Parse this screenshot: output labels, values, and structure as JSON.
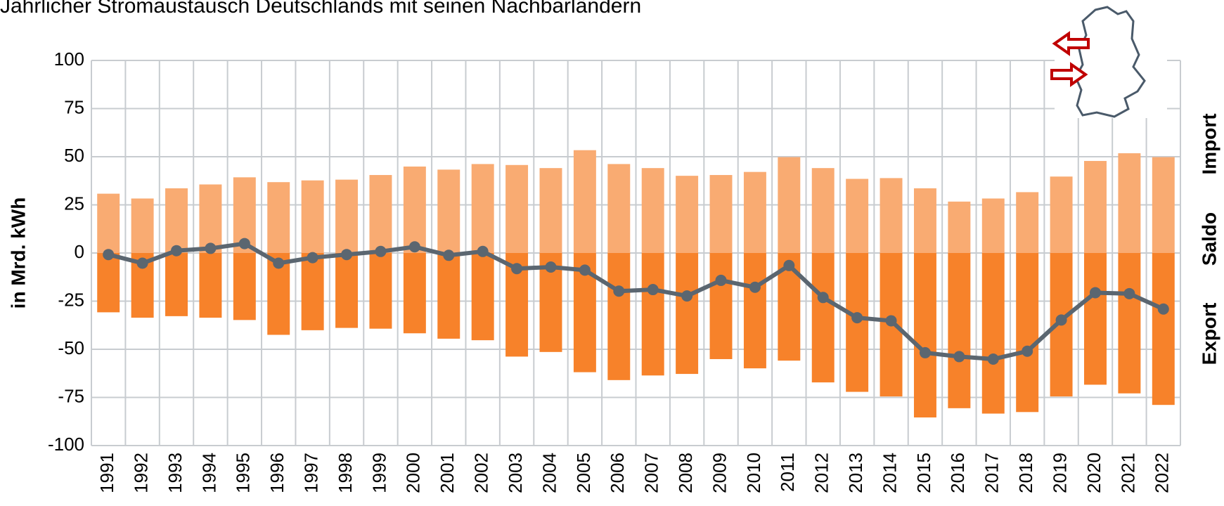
{
  "chart_data": {
    "type": "bar",
    "title": "Jährlicher Stromaustausch Deutschlands mit seinen Nachbarländern",
    "y_label": "in Mrd. kWh",
    "categories": [
      "1991",
      "1992",
      "1993",
      "1994",
      "1995",
      "1996",
      "1997",
      "1998",
      "1999",
      "2000",
      "2001",
      "2002",
      "2003",
      "2004",
      "2005",
      "2006",
      "2007",
      "2008",
      "2009",
      "2010",
      "2011",
      "2012",
      "2013",
      "2014",
      "2015",
      "2016",
      "2017",
      "2018",
      "2019",
      "2020",
      "2021",
      "2022"
    ],
    "series": [
      {
        "name": "Import",
        "type": "bar",
        "color": "#f9ab72",
        "values": [
          30.8,
          28.3,
          33.6,
          35.6,
          39.3,
          36.8,
          37.7,
          38.1,
          40.5,
          44.9,
          43.3,
          46.2,
          45.7,
          44.1,
          53.4,
          46.2,
          44.1,
          40.1,
          40.5,
          42.1,
          49.8,
          44.1,
          38.5,
          38.9,
          33.6,
          26.7,
          28.3,
          31.6,
          39.7,
          47.8,
          51.8,
          49.8
        ]
      },
      {
        "name": "Export",
        "type": "bar",
        "color": "#f7822a",
        "values": [
          -30.8,
          -33.6,
          -32.8,
          -33.6,
          -34.8,
          -42.5,
          -40.1,
          -38.9,
          -39.3,
          -41.7,
          -44.5,
          -45.3,
          -53.8,
          -51.4,
          -61.9,
          -66.0,
          -63.6,
          -62.8,
          -55.1,
          -59.9,
          -55.9,
          -67.2,
          -72.1,
          -74.5,
          -85.4,
          -80.6,
          -83.4,
          -82.6,
          -74.5,
          -68.4,
          -72.9,
          -78.9
        ]
      },
      {
        "name": "Saldo",
        "type": "line",
        "color": "#5b6670",
        "values": [
          -0.8,
          -5.3,
          1.2,
          2.4,
          4.9,
          -5.3,
          -2.4,
          -0.8,
          0.8,
          3.2,
          -1.2,
          0.8,
          -8.1,
          -7.3,
          -8.9,
          -19.8,
          -19.0,
          -22.3,
          -14.2,
          -17.8,
          -6.5,
          -23.1,
          -33.6,
          -35.2,
          -51.8,
          -53.8,
          -55.1,
          -51.0,
          -34.8,
          -20.6,
          -21.1,
          -29.1
        ]
      }
    ],
    "ylim": [
      -100,
      100
    ],
    "yticks": [
      -100,
      -75,
      -50,
      -25,
      0,
      25,
      50,
      75,
      100
    ],
    "grid": true,
    "title_color": "#c00000"
  }
}
